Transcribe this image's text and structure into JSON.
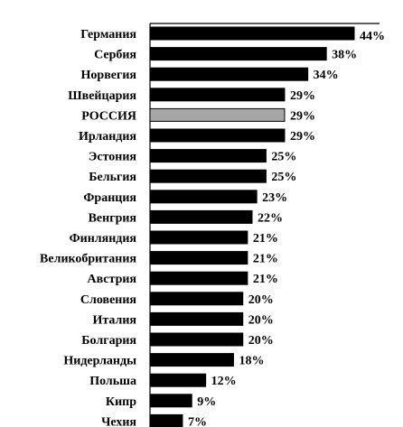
{
  "chart_data": {
    "type": "bar",
    "orientation": "horizontal",
    "categories": [
      "Германия",
      "Сербия",
      "Норвегия",
      "Швейцария",
      "РОССИЯ",
      "Ирландия",
      "Эстония",
      "Бельгия",
      "Франция",
      "Венгрия",
      "Финляндия",
      "Великобритания",
      "Австрия",
      "Словения",
      "Италия",
      "Болгария",
      "Нидерланды",
      "Польша",
      "Кипр",
      "Чехия"
    ],
    "values": [
      44,
      38,
      34,
      29,
      29,
      29,
      25,
      25,
      23,
      22,
      21,
      21,
      21,
      20,
      20,
      20,
      18,
      12,
      9,
      7
    ],
    "value_labels": [
      "44%",
      "38%",
      "34%",
      "29%",
      "29%",
      "29%",
      "25%",
      "25%",
      "23%",
      "22%",
      "21%",
      "21%",
      "21%",
      "20%",
      "20%",
      "20%",
      "18%",
      "12%",
      "9%",
      "7%"
    ],
    "highlight_index": 4,
    "colors": {
      "bar": "#000000",
      "highlight": "#a6a6a6",
      "axis": "#000000"
    },
    "title": "",
    "xlabel": "",
    "ylabel": "",
    "xlim": [
      0,
      44
    ],
    "grid": false,
    "legend": "none"
  }
}
